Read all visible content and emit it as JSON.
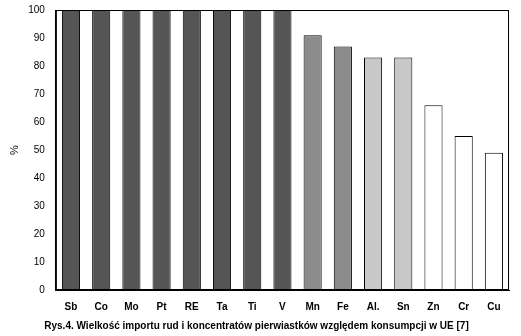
{
  "chart_data": {
    "type": "bar",
    "title": "Rys.4. Wielkość importu rud i koncentratów pierwiastków względem konsumpcji w UE [7]",
    "y_label": "%",
    "categories": [
      "Sb",
      "Co",
      "Mo",
      "Pt",
      "RE",
      "Ta",
      "Ti",
      "V",
      "Mn",
      "Fe",
      "Al.",
      "Sn",
      "Zn",
      "Cr",
      "Cu"
    ],
    "values": [
      100,
      100,
      100,
      100,
      100,
      100,
      100,
      100,
      91,
      87,
      83,
      83,
      66,
      55,
      49
    ],
    "colors": [
      "#555555",
      "#555555",
      "#555555",
      "#555555",
      "#555555",
      "#555555",
      "#555555",
      "#555555",
      "#8c8c8c",
      "#8c8c8c",
      "#c8c8c8",
      "#c8c8c8",
      "#ffffff",
      "#ffffff",
      "#ffffff"
    ],
    "ylim": [
      0,
      100
    ],
    "yticks": [
      0,
      10,
      20,
      30,
      40,
      50,
      60,
      70,
      80,
      90,
      100
    ],
    "grid": false
  }
}
